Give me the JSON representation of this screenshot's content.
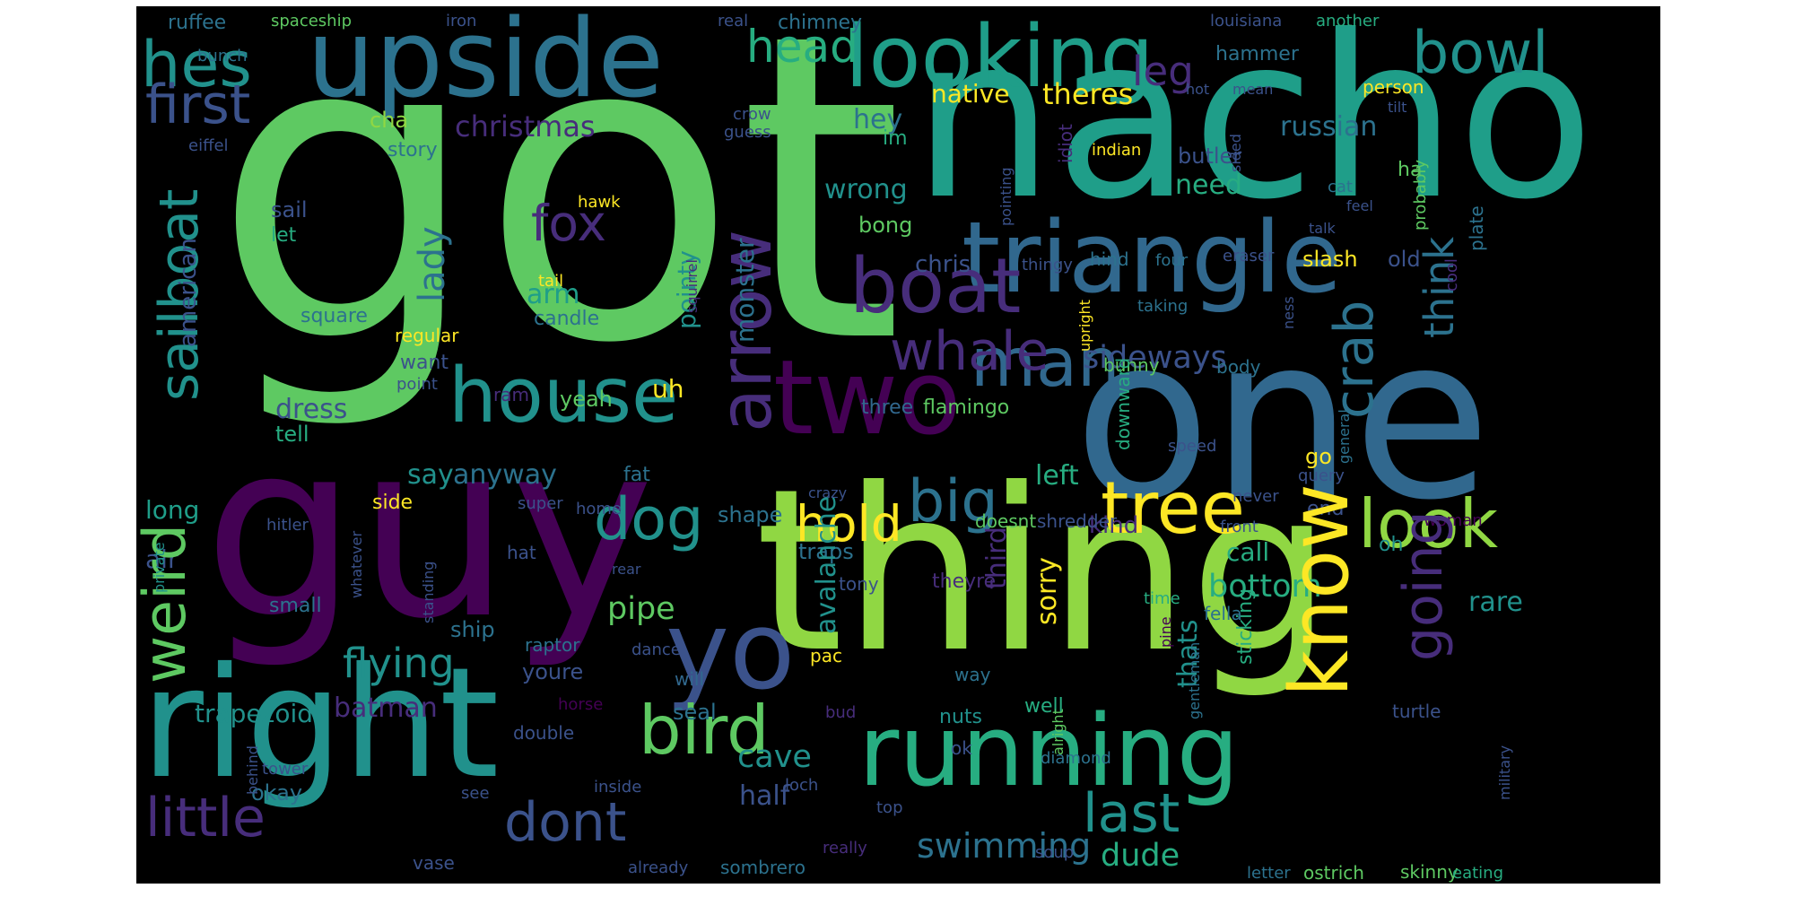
{
  "palette": {
    "background": "#000000",
    "green": "#5ec962",
    "lime": "#90d743",
    "yellow": "#fde725",
    "teal": "#21918c",
    "teal_dark": "#2c728e",
    "blue": "#3b528b",
    "indigo": "#472d7b",
    "purple": "#440154",
    "aqua": "#27ad81",
    "cyan": "#1f9e89",
    "slate": "#31688e"
  },
  "words": [
    {
      "text": "got",
      "size": 470,
      "color": "#5ec962"
    },
    {
      "text": "nacho",
      "size": 250,
      "color": "#1f9e89"
    },
    {
      "text": "one",
      "size": 250,
      "color": "#31688e"
    },
    {
      "text": "guy",
      "size": 270,
      "color": "#440154"
    },
    {
      "text": "thing",
      "size": 250,
      "color": "#90d743"
    },
    {
      "text": "right",
      "size": 170,
      "color": "#21918c"
    },
    {
      "text": "upside",
      "size": 120,
      "color": "#2c728e"
    },
    {
      "text": "looking",
      "size": 95,
      "color": "#1f9e89"
    },
    {
      "text": "running",
      "size": 110,
      "color": "#27ad81"
    },
    {
      "text": "triangle",
      "size": 110,
      "color": "#31688e"
    },
    {
      "text": "yo",
      "size": 120,
      "color": "#3b528b"
    },
    {
      "text": "two",
      "size": 115,
      "color": "#440154"
    },
    {
      "text": "house",
      "size": 85,
      "color": "#21918c"
    },
    {
      "text": "boat",
      "size": 85,
      "color": "#472d7b"
    },
    {
      "text": "man",
      "size": 75,
      "color": "#31688e"
    },
    {
      "text": "tree",
      "size": 80,
      "color": "#fde725"
    },
    {
      "text": "bird",
      "size": 75,
      "color": "#5ec962"
    },
    {
      "text": "dog",
      "size": 65,
      "color": "#21918c"
    },
    {
      "text": "big",
      "size": 65,
      "color": "#2c728e"
    },
    {
      "text": "whale",
      "size": 60,
      "color": "#472d7b"
    },
    {
      "text": "little",
      "size": 60,
      "color": "#472d7b"
    },
    {
      "text": "dont",
      "size": 60,
      "color": "#3b528b"
    },
    {
      "text": "last",
      "size": 60,
      "color": "#21918c"
    },
    {
      "text": "look",
      "size": 75,
      "color": "#90d743"
    },
    {
      "text": "hes",
      "size": 70,
      "color": "#21918c"
    },
    {
      "text": "bowl",
      "size": 65,
      "color": "#21918c"
    },
    {
      "text": "first",
      "size": 60,
      "color": "#3b528b"
    },
    {
      "text": "head",
      "size": 50,
      "color": "#27ad81"
    },
    {
      "text": "fox",
      "size": 55,
      "color": "#472d7b"
    },
    {
      "text": "hold",
      "size": 55,
      "color": "#fde725"
    },
    {
      "text": "flying",
      "size": 45,
      "color": "#21918c"
    },
    {
      "text": "leg",
      "size": 45,
      "color": "#472d7b"
    },
    {
      "text": "swimming",
      "size": 38,
      "color": "#2c728e"
    },
    {
      "text": "dude",
      "size": 35,
      "color": "#27ad81"
    },
    {
      "text": "pipe",
      "size": 35,
      "color": "#5ec962"
    },
    {
      "text": "cave",
      "size": 35,
      "color": "#21918c"
    },
    {
      "text": "bottom",
      "size": 35,
      "color": "#27ad81"
    },
    {
      "text": "sideways",
      "size": 35,
      "color": "#3b528b"
    },
    {
      "text": "christmas",
      "size": 32,
      "color": "#472d7b"
    },
    {
      "text": "theres",
      "size": 32,
      "color": "#fde725"
    },
    {
      "text": "native",
      "size": 28,
      "color": "#fde725"
    },
    {
      "text": "hey",
      "size": 30,
      "color": "#2c728e"
    },
    {
      "text": "russian",
      "size": 30,
      "color": "#2c728e"
    },
    {
      "text": "wrong",
      "size": 30,
      "color": "#21918c"
    },
    {
      "text": "need",
      "size": 30,
      "color": "#27ad81"
    },
    {
      "text": "left",
      "size": 30,
      "color": "#27ad81"
    },
    {
      "text": "say",
      "size": 30,
      "color": "#21918c"
    },
    {
      "text": "anyway",
      "size": 30,
      "color": "#2c728e"
    },
    {
      "text": "dress",
      "size": 30,
      "color": "#3b528b"
    },
    {
      "text": "arm",
      "size": 30,
      "color": "#1f9e89"
    },
    {
      "text": "batman",
      "size": 30,
      "color": "#472d7b"
    },
    {
      "text": "half",
      "size": 30,
      "color": "#3b528b"
    },
    {
      "text": "long",
      "size": 28,
      "color": "#1f9e89"
    },
    {
      "text": "air",
      "size": 28,
      "color": "#3b528b"
    },
    {
      "text": "kind",
      "size": 26,
      "color": "#472d7b"
    },
    {
      "text": "rare",
      "size": 30,
      "color": "#21918c"
    },
    {
      "text": "call",
      "size": 28,
      "color": "#27ad81"
    },
    {
      "text": "trapezoid",
      "size": 28,
      "color": "#21918c"
    },
    {
      "text": "chris",
      "size": 26,
      "color": "#3b528b"
    },
    {
      "text": "butler",
      "size": 24,
      "color": "#3b528b"
    },
    {
      "text": "slash",
      "size": 24,
      "color": "#fde725"
    },
    {
      "text": "old",
      "size": 24,
      "color": "#3b528b"
    },
    {
      "text": "cha",
      "size": 24,
      "color": "#90d743"
    },
    {
      "text": "story",
      "size": 22,
      "color": "#2c728e"
    },
    {
      "text": "sail",
      "size": 24,
      "color": "#3b528b"
    },
    {
      "text": "let",
      "size": 22,
      "color": "#27ad81"
    },
    {
      "text": "bong",
      "size": 24,
      "color": "#5ec962"
    },
    {
      "text": "candle",
      "size": 22,
      "color": "#2c728e"
    },
    {
      "text": "square",
      "size": 22,
      "color": "#2c728e"
    },
    {
      "text": "regular",
      "size": 20,
      "color": "#fde725"
    },
    {
      "text": "want",
      "size": 22,
      "color": "#3b528b"
    },
    {
      "text": "point",
      "size": 18,
      "color": "#3b528b"
    },
    {
      "text": "ram",
      "size": 20,
      "color": "#472d7b"
    },
    {
      "text": "yeah",
      "size": 24,
      "color": "#5ec962"
    },
    {
      "text": "uh",
      "size": 28,
      "color": "#fde725"
    },
    {
      "text": "tell",
      "size": 24,
      "color": "#27ad81"
    },
    {
      "text": "three",
      "size": 22,
      "color": "#31688e"
    },
    {
      "text": "flamingo",
      "size": 22,
      "color": "#5ec962"
    },
    {
      "text": "side",
      "size": 22,
      "color": "#fde725"
    },
    {
      "text": "super",
      "size": 18,
      "color": "#3b528b"
    },
    {
      "text": "home",
      "size": 18,
      "color": "#3b528b"
    },
    {
      "text": "shape",
      "size": 24,
      "color": "#2c728e"
    },
    {
      "text": "go",
      "size": 24,
      "color": "#fde725"
    },
    {
      "text": "end",
      "size": 22,
      "color": "#3b528b"
    },
    {
      "text": "front",
      "size": 18,
      "color": "#3b528b"
    },
    {
      "text": "doesnt",
      "size": 20,
      "color": "#5ec962"
    },
    {
      "text": "shredder",
      "size": 20,
      "color": "#3b528b"
    },
    {
      "text": "hitler",
      "size": 18,
      "color": "#3b528b"
    },
    {
      "text": "fat",
      "size": 22,
      "color": "#2c728e"
    },
    {
      "text": "crazy",
      "size": 16,
      "color": "#3b528b"
    },
    {
      "text": "hat",
      "size": 20,
      "color": "#3b528b"
    },
    {
      "text": "traps",
      "size": 24,
      "color": "#2c728e"
    },
    {
      "text": "tony",
      "size": 20,
      "color": "#3b528b"
    },
    {
      "text": "theyre",
      "size": 22,
      "color": "#472d7b"
    },
    {
      "text": "time",
      "size": 18,
      "color": "#27ad81"
    },
    {
      "text": "fella",
      "size": 20,
      "color": "#2c728e"
    },
    {
      "text": "oh",
      "size": 22,
      "color": "#21918c"
    },
    {
      "text": "woman",
      "size": 18,
      "color": "#440154"
    },
    {
      "text": "query",
      "size": 18,
      "color": "#3b528b"
    },
    {
      "text": "never",
      "size": 18,
      "color": "#3b528b"
    },
    {
      "text": "speed",
      "size": 18,
      "color": "#3b528b"
    },
    {
      "text": "small",
      "size": 22,
      "color": "#2c728e"
    },
    {
      "text": "rear",
      "size": 16,
      "color": "#3b528b"
    },
    {
      "text": "ship",
      "size": 24,
      "color": "#2c728e"
    },
    {
      "text": "raptor",
      "size": 20,
      "color": "#2c728e"
    },
    {
      "text": "youre",
      "size": 24,
      "color": "#3b528b"
    },
    {
      "text": "dance",
      "size": 18,
      "color": "#3b528b"
    },
    {
      "text": "will",
      "size": 20,
      "color": "#31688e"
    },
    {
      "text": "pac",
      "size": 20,
      "color": "#fde725"
    },
    {
      "text": "way",
      "size": 20,
      "color": "#2c728e"
    },
    {
      "text": "nuts",
      "size": 22,
      "color": "#21918c"
    },
    {
      "text": "well",
      "size": 22,
      "color": "#27ad81"
    },
    {
      "text": "seal",
      "size": 24,
      "color": "#2c728e"
    },
    {
      "text": "horse",
      "size": 18,
      "color": "#440154"
    },
    {
      "text": "double",
      "size": 20,
      "color": "#3b528b"
    },
    {
      "text": "bud",
      "size": 18,
      "color": "#472d7b"
    },
    {
      "text": "ok",
      "size": 20,
      "color": "#3b528b"
    },
    {
      "text": "diamond",
      "size": 18,
      "color": "#2c728e"
    },
    {
      "text": "turtle",
      "size": 20,
      "color": "#3b528b"
    },
    {
      "text": "tower",
      "size": 18,
      "color": "#3b528b"
    },
    {
      "text": "okay",
      "size": 24,
      "color": "#2c728e"
    },
    {
      "text": "see",
      "size": 18,
      "color": "#3b528b"
    },
    {
      "text": "inside",
      "size": 18,
      "color": "#3b528b"
    },
    {
      "text": "loch",
      "size": 18,
      "color": "#3b528b"
    },
    {
      "text": "top",
      "size": 18,
      "color": "#3b528b"
    },
    {
      "text": "really",
      "size": 18,
      "color": "#472d7b"
    },
    {
      "text": "vase",
      "size": 20,
      "color": "#3b528b"
    },
    {
      "text": "already",
      "size": 18,
      "color": "#3b528b"
    },
    {
      "text": "sombrero",
      "size": 20,
      "color": "#2c728e"
    },
    {
      "text": "soup",
      "size": 18,
      "color": "#3b528b"
    },
    {
      "text": "letter",
      "size": 18,
      "color": "#2c728e"
    },
    {
      "text": "ostrich",
      "size": 20,
      "color": "#5ec962"
    },
    {
      "text": "skinny",
      "size": 20,
      "color": "#5ec962"
    },
    {
      "text": "eating",
      "size": 18,
      "color": "#27ad81"
    },
    {
      "text": "ruffee",
      "size": 22,
      "color": "#2c728e"
    },
    {
      "text": "spaceship",
      "size": 18,
      "color": "#5ec962"
    },
    {
      "text": "iron",
      "size": 18,
      "color": "#3b528b"
    },
    {
      "text": "bunch",
      "size": 18,
      "color": "#2c728e"
    },
    {
      "text": "real",
      "size": 18,
      "color": "#3b528b"
    },
    {
      "text": "chimney",
      "size": 22,
      "color": "#2c728e"
    },
    {
      "text": "louisiana",
      "size": 18,
      "color": "#3b528b"
    },
    {
      "text": "another",
      "size": 18,
      "color": "#27ad81"
    },
    {
      "text": "hammer",
      "size": 22,
      "color": "#2c728e"
    },
    {
      "text": "hot",
      "size": 16,
      "color": "#3b528b"
    },
    {
      "text": "mean",
      "size": 16,
      "color": "#3b528b"
    },
    {
      "text": "person",
      "size": 20,
      "color": "#fde725"
    },
    {
      "text": "tilt",
      "size": 16,
      "color": "#3b528b"
    },
    {
      "text": "im",
      "size": 22,
      "color": "#27ad81"
    },
    {
      "text": "crow",
      "size": 18,
      "color": "#3b528b"
    },
    {
      "text": "guess",
      "size": 18,
      "color": "#3b528b"
    },
    {
      "text": "eiffel",
      "size": 18,
      "color": "#3b528b"
    },
    {
      "text": "hawk",
      "size": 18,
      "color": "#fde725"
    },
    {
      "text": "tail",
      "size": 18,
      "color": "#fde725"
    },
    {
      "text": "indian",
      "size": 18,
      "color": "#fde725"
    },
    {
      "text": "ha",
      "size": 22,
      "color": "#5ec962"
    },
    {
      "text": "cat",
      "size": 18,
      "color": "#2c728e"
    },
    {
      "text": "feel",
      "size": 16,
      "color": "#3b528b"
    },
    {
      "text": "talk",
      "size": 16,
      "color": "#3b528b"
    },
    {
      "text": "eraser",
      "size": 18,
      "color": "#3b528b"
    },
    {
      "text": "four",
      "size": 18,
      "color": "#2c728e"
    },
    {
      "text": "hind",
      "size": 20,
      "color": "#2c728e"
    },
    {
      "text": "thingy",
      "size": 18,
      "color": "#3b528b"
    },
    {
      "text": "taking",
      "size": 18,
      "color": "#2c728e"
    },
    {
      "text": "body",
      "size": 20,
      "color": "#2c728e"
    },
    {
      "text": "bunny",
      "size": 20,
      "color": "#5ec962"
    },
    {
      "text": "arrow",
      "size": 80,
      "color": "#472d7b",
      "vertical": true
    },
    {
      "text": "know",
      "size": 90,
      "color": "#fde725",
      "vertical": true
    },
    {
      "text": "going",
      "size": 60,
      "color": "#472d7b",
      "vertical": true
    },
    {
      "text": "crab",
      "size": 60,
      "color": "#2c728e",
      "vertical": true
    },
    {
      "text": "think",
      "size": 45,
      "color": "#2c728e",
      "vertical": true
    },
    {
      "text": "sailboat",
      "size": 60,
      "color": "#21918c",
      "vertical": true
    },
    {
      "text": "weird",
      "size": 65,
      "color": "#5ec962",
      "vertical": true
    },
    {
      "text": "lady",
      "size": 40,
      "color": "#2c728e",
      "vertical": true
    },
    {
      "text": "american",
      "size": 26,
      "color": "#3b528b",
      "vertical": true
    },
    {
      "text": "pointy",
      "size": 28,
      "color": "#21918c",
      "vertical": true
    },
    {
      "text": "monster",
      "size": 28,
      "color": "#2c728e",
      "vertical": true
    },
    {
      "text": "avalanche",
      "size": 30,
      "color": "#21918c",
      "vertical": true
    },
    {
      "text": "third",
      "size": 30,
      "color": "#472d7b",
      "vertical": true
    },
    {
      "text": "sorry",
      "size": 30,
      "color": "#fde725",
      "vertical": true
    },
    {
      "text": "thats",
      "size": 30,
      "color": "#21918c",
      "vertical": true
    },
    {
      "text": "sticking",
      "size": 22,
      "color": "#27ad81",
      "vertical": true
    },
    {
      "text": "downward",
      "size": 20,
      "color": "#27ad81",
      "vertical": true
    },
    {
      "text": "sided",
      "size": 16,
      "color": "#3b528b",
      "vertical": true
    },
    {
      "text": "idiot",
      "size": 20,
      "color": "#472d7b",
      "vertical": true
    },
    {
      "text": "pointing",
      "size": 16,
      "color": "#3b528b",
      "vertical": true
    },
    {
      "text": "probably",
      "size": 18,
      "color": "#5ec962",
      "vertical": true
    },
    {
      "text": "plate",
      "size": 20,
      "color": "#2c728e",
      "vertical": true
    },
    {
      "text": "cool",
      "size": 18,
      "color": "#472d7b",
      "vertical": true
    },
    {
      "text": "ness",
      "size": 16,
      "color": "#3b528b",
      "vertical": true
    },
    {
      "text": "upright",
      "size": 16,
      "color": "#fde725",
      "vertical": true
    },
    {
      "text": "squirrel",
      "size": 16,
      "color": "#472d7b",
      "vertical": true
    },
    {
      "text": "general",
      "size": 16,
      "color": "#2c728e",
      "vertical": true
    },
    {
      "text": "gentleman",
      "size": 16,
      "color": "#2c728e",
      "vertical": true
    },
    {
      "text": "pine",
      "size": 16,
      "color": "#440154",
      "vertical": true
    },
    {
      "text": "alright",
      "size": 16,
      "color": "#5ec962",
      "vertical": true
    },
    {
      "text": "military",
      "size": 16,
      "color": "#3b528b",
      "vertical": true
    },
    {
      "text": "private",
      "size": 16,
      "color": "#21918c",
      "vertical": true
    },
    {
      "text": "whatever",
      "size": 16,
      "color": "#3b528b",
      "vertical": true
    },
    {
      "text": "standing",
      "size": 16,
      "color": "#3b528b",
      "vertical": true
    },
    {
      "text": "behind",
      "size": 16,
      "color": "#3b528b",
      "vertical": true
    }
  ]
}
